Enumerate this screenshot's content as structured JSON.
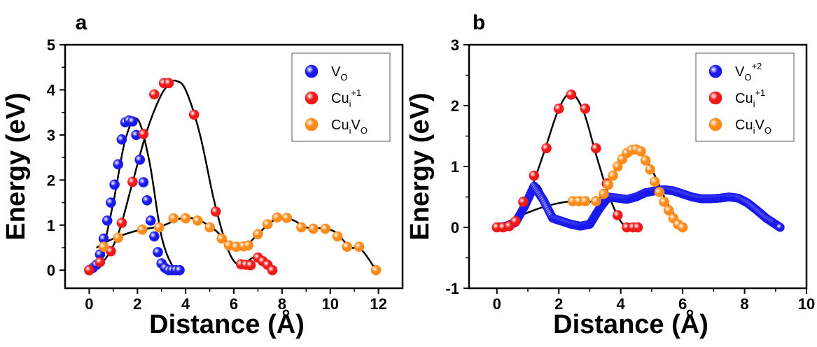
{
  "chart_data": [
    {
      "panel": "a",
      "type": "scatter",
      "xlabel": "Distance (Å)",
      "ylabel": "Energy (eV)",
      "xlim": [
        -1,
        13
      ],
      "ylim": [
        -0.4,
        5
      ],
      "xticks": [
        0,
        2,
        4,
        6,
        8,
        10,
        12
      ],
      "yticks": [
        0,
        1,
        2,
        3,
        4,
        5
      ],
      "legend_position": "top-right",
      "series": [
        {
          "name": "VO",
          "name_base": "V",
          "name_sub": "O",
          "name_sup": "",
          "color": "#1a1aee",
          "x": [
            0.0,
            0.15,
            0.3,
            0.45,
            0.6,
            0.75,
            0.9,
            1.05,
            1.2,
            1.35,
            1.5,
            1.65,
            1.8,
            1.95,
            2.1,
            2.25,
            2.4,
            2.55,
            2.7,
            2.85,
            3.0,
            3.15,
            3.3,
            3.45,
            3.6,
            3.75
          ],
          "y": [
            0.0,
            0.05,
            0.12,
            0.35,
            0.7,
            1.1,
            1.5,
            1.9,
            2.35,
            2.9,
            3.28,
            3.32,
            3.3,
            3.0,
            2.45,
            1.95,
            1.55,
            1.1,
            0.75,
            0.4,
            0.15,
            0.05,
            0.0,
            0.0,
            0.0,
            0.0
          ]
        },
        {
          "name": "Cui+1",
          "name_base": "Cu",
          "name_sub": "i",
          "name_sup": "+1",
          "color": "#ee1a1a",
          "x": [
            0.0,
            0.45,
            0.9,
            1.35,
            1.8,
            2.25,
            2.7,
            3.1,
            3.3,
            4.35,
            5.25,
            6.3,
            6.5,
            6.7,
            7.0,
            7.2,
            7.4,
            7.6
          ],
          "y": [
            0.0,
            0.18,
            0.42,
            1.05,
            1.96,
            3.02,
            3.9,
            4.15,
            4.15,
            3.45,
            1.3,
            0.13,
            0.12,
            0.11,
            0.28,
            0.2,
            0.12,
            0.0
          ]
        },
        {
          "name": "CuiVO",
          "name_base": "Cu",
          "name_sub": "i",
          "name_sup": "",
          "name_base2": "V",
          "name_sub2": "O",
          "color": "#ff8c1a",
          "x": [
            0.6,
            1.2,
            2.2,
            2.9,
            3.5,
            4.0,
            4.5,
            5.0,
            5.5,
            5.8,
            6.1,
            6.4,
            6.6,
            7.0,
            7.4,
            7.8,
            8.2,
            8.8,
            9.3,
            9.8,
            10.3,
            10.7,
            11.2,
            11.9
          ],
          "y": [
            0.52,
            0.72,
            0.9,
            0.95,
            1.15,
            1.15,
            1.1,
            0.95,
            0.7,
            0.55,
            0.52,
            0.53,
            0.55,
            0.8,
            1.02,
            1.17,
            1.16,
            0.95,
            0.92,
            0.92,
            0.75,
            0.52,
            0.52,
            0.0
          ]
        }
      ],
      "fit_curves": [
        {
          "x": [
            0,
            0.5,
            1.0,
            1.5,
            2.0,
            2.5,
            3.0,
            3.5,
            3.8
          ],
          "y": [
            0,
            0.35,
            1.5,
            2.9,
            3.35,
            2.4,
            0.75,
            0.05,
            0
          ]
        },
        {
          "x": [
            0,
            0.6,
            1.2,
            1.8,
            2.4,
            3.0,
            3.4,
            3.6,
            4.0,
            4.6,
            5.2,
            5.8,
            6.3,
            6.8,
            7.2,
            7.6
          ],
          "y": [
            0,
            0.2,
            0.8,
            1.95,
            3.1,
            3.9,
            4.15,
            4.2,
            4.0,
            3.0,
            1.5,
            0.4,
            0.1,
            0.28,
            0.18,
            0
          ]
        },
        {
          "x": [
            0.3,
            1.0,
            2.0,
            3.0,
            3.8,
            4.5,
            5.2,
            5.8,
            6.4,
            7.0,
            7.5,
            8.0,
            8.5,
            9.0,
            9.6,
            10.2,
            10.8,
            11.3,
            11.9
          ],
          "y": [
            0.5,
            0.7,
            0.88,
            0.98,
            1.15,
            1.12,
            0.9,
            0.6,
            0.52,
            0.8,
            1.05,
            1.18,
            1.1,
            0.95,
            0.93,
            0.85,
            0.52,
            0.45,
            0.0
          ]
        }
      ]
    },
    {
      "panel": "b",
      "type": "scatter",
      "xlabel": "Distance (Å)",
      "ylabel": "Energy (eV)",
      "xlim": [
        -0.9,
        10
      ],
      "ylim": [
        -1,
        3
      ],
      "xticks": [
        0,
        2,
        4,
        6,
        8,
        10
      ],
      "yticks": [
        -1,
        0,
        1,
        2,
        3
      ],
      "legend_position": "top-right",
      "series": [
        {
          "name": "VO+2",
          "name_base": "V",
          "name_sub": "O",
          "name_sup": "+2",
          "color": "#1a1aee",
          "dense": true,
          "x": [
            0.0,
            0.3,
            0.6,
            0.9,
            1.2,
            1.5,
            1.8,
            2.1,
            2.4,
            2.7,
            3.0,
            3.3,
            3.6,
            3.9,
            4.2,
            4.5,
            4.8,
            5.1,
            5.4,
            5.7,
            6.0,
            6.3,
            6.6,
            6.9,
            7.2,
            7.5,
            7.8,
            8.1,
            8.4,
            8.7,
            9.0,
            9.15
          ],
          "y": [
            0.0,
            0.02,
            0.08,
            0.35,
            0.68,
            0.45,
            0.15,
            0.1,
            0.05,
            0.02,
            0.05,
            0.3,
            0.5,
            0.48,
            0.46,
            0.5,
            0.57,
            0.6,
            0.62,
            0.6,
            0.55,
            0.5,
            0.47,
            0.47,
            0.48,
            0.5,
            0.48,
            0.4,
            0.28,
            0.15,
            0.05,
            0.0
          ]
        },
        {
          "name": "Cui+1",
          "name_base": "Cu",
          "name_sub": "i",
          "name_sup": "+1",
          "color": "#ee1a1a",
          "x": [
            0.0,
            0.2,
            0.4,
            0.6,
            0.85,
            1.2,
            1.6,
            2.0,
            2.4,
            2.85,
            3.2,
            3.55,
            3.9,
            4.2,
            4.4,
            4.55
          ],
          "y": [
            0.0,
            0.0,
            0.02,
            0.1,
            0.42,
            0.85,
            1.3,
            1.95,
            2.18,
            1.95,
            1.3,
            0.72,
            0.2,
            0.0,
            0.0,
            0.0
          ]
        },
        {
          "name": "CuiVO",
          "name_base": "Cu",
          "name_sub": "i",
          "name_sup": "",
          "name_base2": "V",
          "name_sub2": "O",
          "color": "#ff8c1a",
          "x": [
            2.45,
            2.65,
            2.85,
            3.2,
            3.45,
            3.6,
            3.75,
            3.9,
            4.05,
            4.2,
            4.35,
            4.5,
            4.65,
            4.8,
            4.95,
            5.1,
            5.25,
            5.4,
            5.55,
            5.7,
            5.85,
            6.0
          ],
          "y": [
            0.43,
            0.43,
            0.43,
            0.43,
            0.55,
            0.7,
            0.85,
            1.0,
            1.12,
            1.22,
            1.27,
            1.28,
            1.25,
            1.1,
            0.95,
            0.75,
            0.58,
            0.42,
            0.28,
            0.15,
            0.05,
            0.0
          ]
        }
      ],
      "fit_curves": [
        {
          "x": [
            0,
            0.5,
            1.0,
            1.5,
            2.0,
            2.4,
            2.8,
            3.2,
            3.6,
            4.0,
            4.3,
            4.6
          ],
          "y": [
            0,
            0.05,
            0.5,
            1.2,
            1.95,
            2.2,
            1.9,
            1.2,
            0.55,
            0.1,
            0.0,
            0.0
          ]
        },
        {
          "x": [
            0,
            0.6,
            1.0,
            1.3,
            1.6,
            2.0,
            2.4,
            2.7,
            3.0,
            3.4,
            3.8
          ],
          "y": [
            0,
            0.1,
            0.45,
            0.7,
            0.45,
            0.12,
            0.03,
            0.0,
            0.05,
            0.35,
            0.5
          ]
        },
        {
          "x": [
            0,
            0.8,
            1.6,
            2.4,
            3.2,
            3.6,
            4.0,
            4.5,
            5.0,
            5.5,
            6.0
          ],
          "y": [
            0,
            0.2,
            0.35,
            0.43,
            0.44,
            0.7,
            1.1,
            1.28,
            0.95,
            0.4,
            0.0
          ]
        }
      ]
    }
  ]
}
